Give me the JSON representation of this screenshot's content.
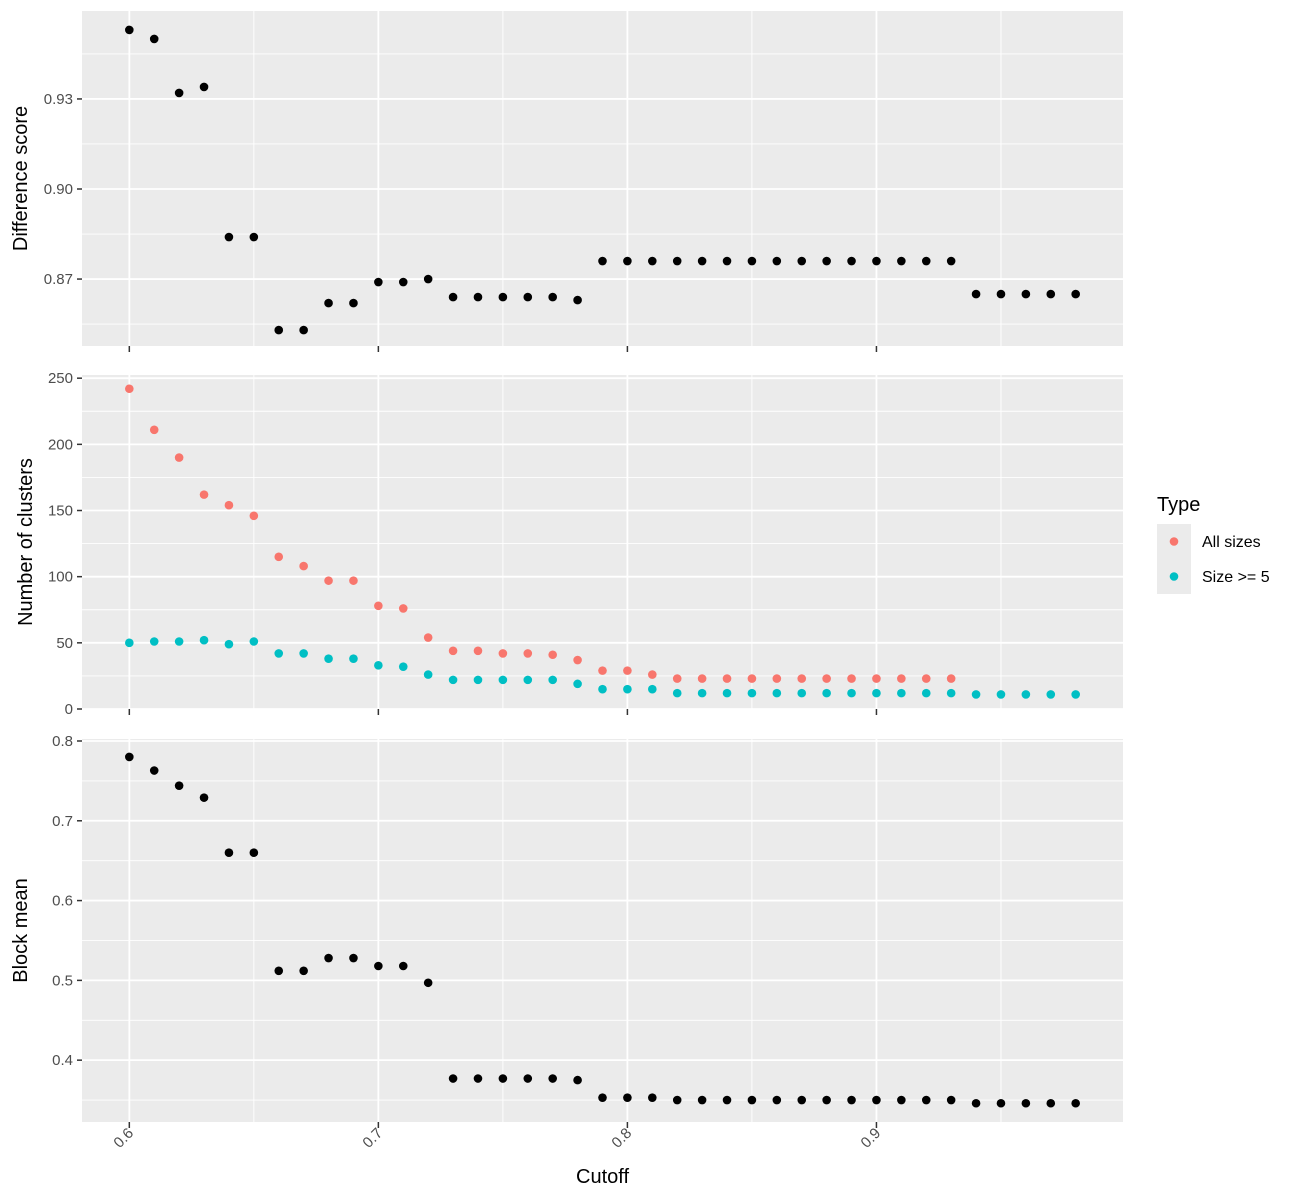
{
  "chart_data": {
    "type": "scatter",
    "x": [
      0.6,
      0.61,
      0.62,
      0.63,
      0.64,
      0.65,
      0.66,
      0.67,
      0.68,
      0.69,
      0.7,
      0.71,
      0.72,
      0.73,
      0.74,
      0.75,
      0.76,
      0.77,
      0.78,
      0.79,
      0.8,
      0.81,
      0.82,
      0.83,
      0.84,
      0.85,
      0.86,
      0.87,
      0.88,
      0.89,
      0.9,
      0.91,
      0.92,
      0.93,
      0.94,
      0.95,
      0.96,
      0.97,
      0.98
    ],
    "xlabel": "Cutoff",
    "xlim": [
      0.581,
      0.999
    ],
    "xticks": [
      "0.6",
      "0.7",
      "0.8",
      "0.9"
    ],
    "legend": {
      "title": "Type",
      "position": "right"
    },
    "grid": true,
    "panels": [
      {
        "ylabel": "Difference score",
        "ylim": [
          0.8477,
          0.9593
        ],
        "yticks": [
          "0.87",
          "0.90",
          "0.93"
        ],
        "series": [
          {
            "color": "#000000",
            "values": [
              0.953,
              0.95,
              0.932,
              0.934,
              0.884,
              0.884,
              0.853,
              0.853,
              0.862,
              0.862,
              0.869,
              0.869,
              0.87,
              0.864,
              0.864,
              0.864,
              0.864,
              0.864,
              0.863,
              0.876,
              0.876,
              0.876,
              0.876,
              0.876,
              0.876,
              0.876,
              0.876,
              0.876,
              0.876,
              0.876,
              0.876,
              0.876,
              0.876,
              0.876,
              0.865,
              0.865,
              0.865,
              0.865,
              0.865
            ]
          }
        ]
      },
      {
        "ylabel": "Number of clusters",
        "ylim": [
          0,
          252.4
        ],
        "yticks": [
          "0",
          "50",
          "100",
          "150",
          "200",
          "250"
        ],
        "series": [
          {
            "name": "All sizes",
            "color": "#F8766D",
            "values": [
              242,
              211,
              190,
              162,
              154,
              146,
              115,
              108,
              97,
              97,
              78,
              76,
              54,
              44,
              44,
              42,
              42,
              41,
              37,
              29,
              29,
              26,
              23,
              23,
              23,
              23,
              23,
              23,
              23,
              23,
              23,
              23,
              23,
              23,
              null,
              null,
              null,
              null,
              null
            ]
          },
          {
            "name": "Size >= 5",
            "color": "#00BFC4",
            "values": [
              50,
              51,
              51,
              52,
              49,
              51,
              42,
              42,
              38,
              38,
              33,
              32,
              26,
              22,
              22,
              22,
              22,
              22,
              19,
              15,
              15,
              15,
              12,
              12,
              12,
              12,
              12,
              12,
              12,
              12,
              12,
              12,
              12,
              12,
              11,
              11,
              11,
              11,
              11
            ]
          }
        ]
      },
      {
        "ylabel": "Block mean",
        "ylim": [
          0.3225,
          0.8025
        ],
        "yticks": [
          "0.4",
          "0.5",
          "0.6",
          "0.7",
          "0.8"
        ],
        "series": [
          {
            "color": "#000000",
            "values": [
              0.78,
              0.763,
              0.744,
              0.729,
              0.66,
              0.66,
              0.512,
              0.512,
              0.528,
              0.528,
              0.518,
              0.518,
              0.497,
              0.377,
              0.377,
              0.377,
              0.377,
              0.377,
              0.375,
              0.353,
              0.353,
              0.353,
              0.35,
              0.35,
              0.35,
              0.35,
              0.35,
              0.35,
              0.35,
              0.35,
              0.35,
              0.35,
              0.35,
              0.35,
              0.346,
              0.346,
              0.346,
              0.346,
              0.346
            ]
          }
        ]
      }
    ]
  }
}
